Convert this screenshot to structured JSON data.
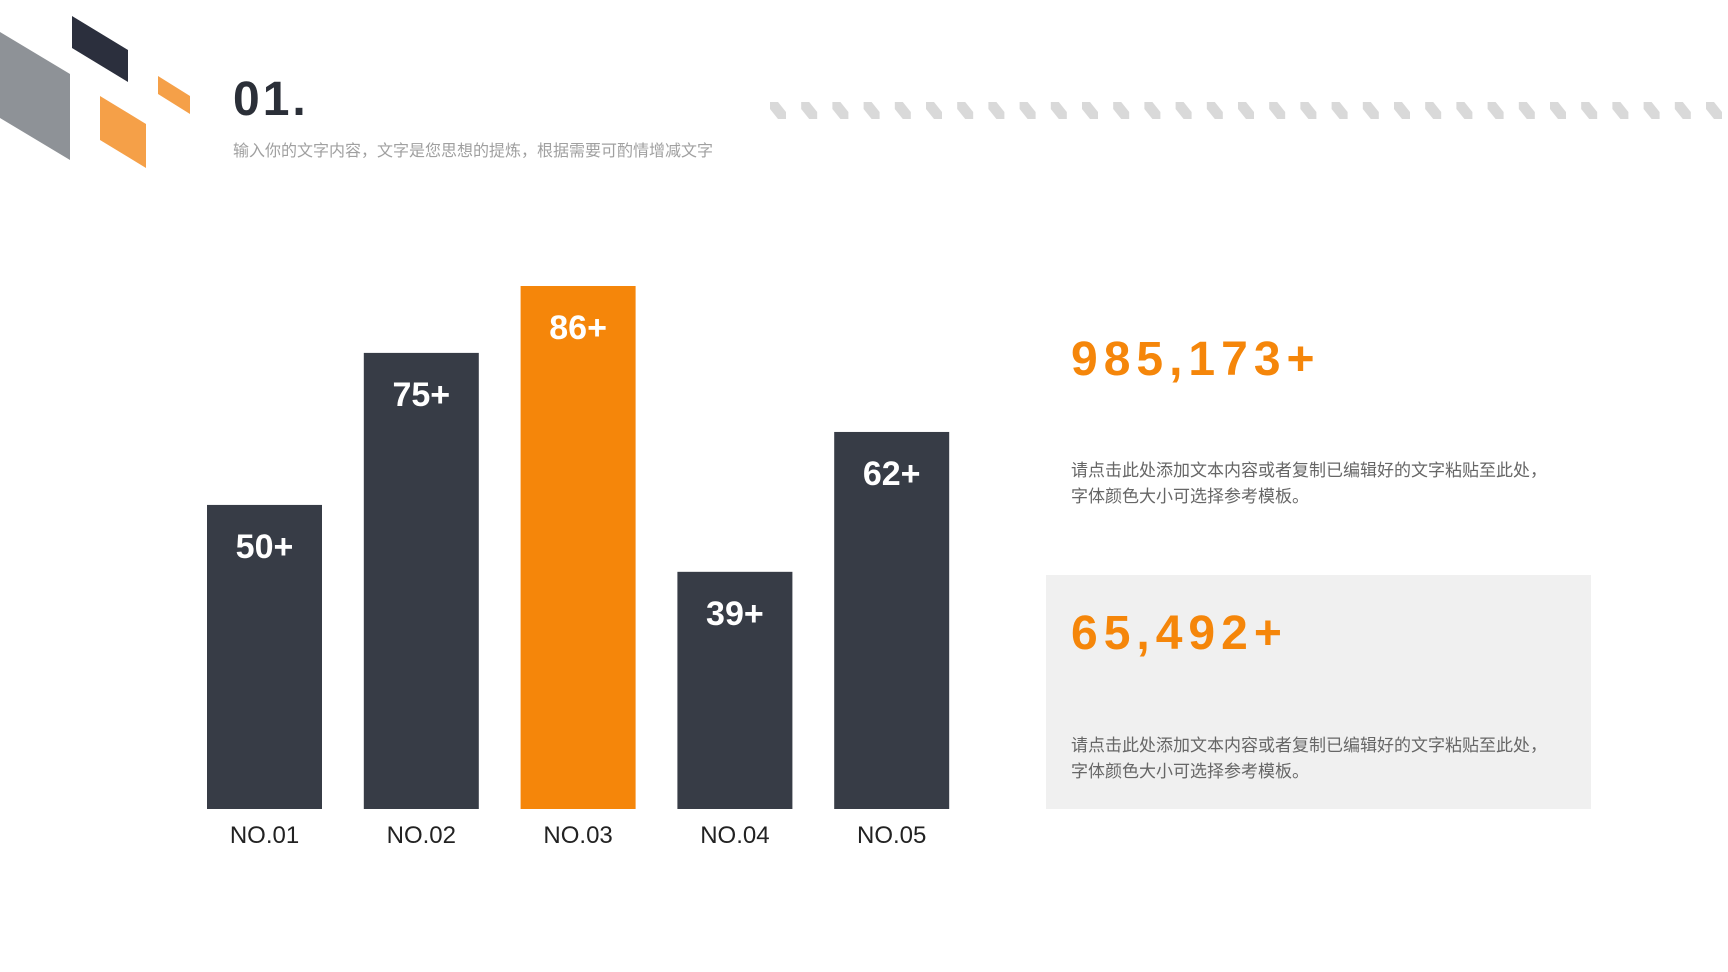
{
  "header": {
    "title": "01.",
    "subtitle": "输入你的文字内容，文字是您思想的提炼，根据需要可酌情增减文字"
  },
  "chart_data": {
    "type": "bar",
    "categories": [
      "NO.01",
      "NO.02",
      "NO.03",
      "NO.04",
      "NO.05"
    ],
    "values": [
      50,
      75,
      86,
      39,
      62
    ],
    "value_labels": [
      "50+",
      "75+",
      "86+",
      "39+",
      "62+"
    ],
    "colors": [
      "#373c46",
      "#373c46",
      "#f5860a",
      "#373c46",
      "#373c46"
    ]
  },
  "stats": [
    {
      "value": "985,173+",
      "text": "请点击此处添加文本内容或者复制已编辑好的文字粘贴至此处，字体颜色大小可选择参考模板。"
    },
    {
      "value": "65,492+",
      "text": "请点击此处添加文本内容或者复制已编辑好的文字粘贴至此处，字体颜色大小可选择参考模板。"
    }
  ]
}
